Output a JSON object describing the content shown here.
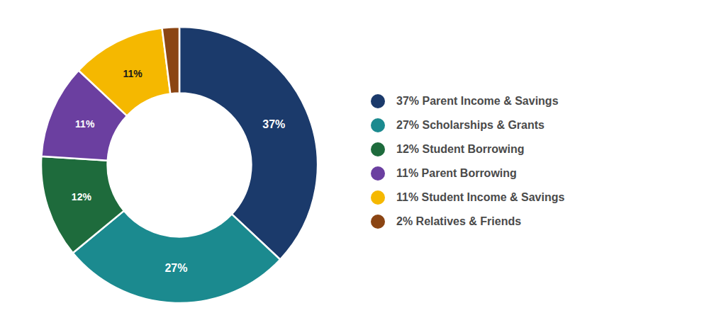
{
  "chart_data": {
    "type": "pie",
    "categories": [
      "37% Parent Income & Savings",
      "27% Scholarships & Grants",
      "12% Student Borrowing",
      "11% Parent Borrowing",
      "11% Student Income & Savings",
      "2% Relatives & Friends"
    ],
    "values": [
      37,
      27,
      12,
      11,
      11,
      2
    ],
    "value_labels": [
      "37%",
      "27%",
      "12%",
      "11%",
      "11%",
      null
    ],
    "data_labels": true,
    "colors": [
      "#1b3a6b",
      "#1b8a8f",
      "#1e6b3c",
      "#6b3fa0",
      "#f5b800",
      "#8b4513"
    ],
    "legend": "right"
  }
}
